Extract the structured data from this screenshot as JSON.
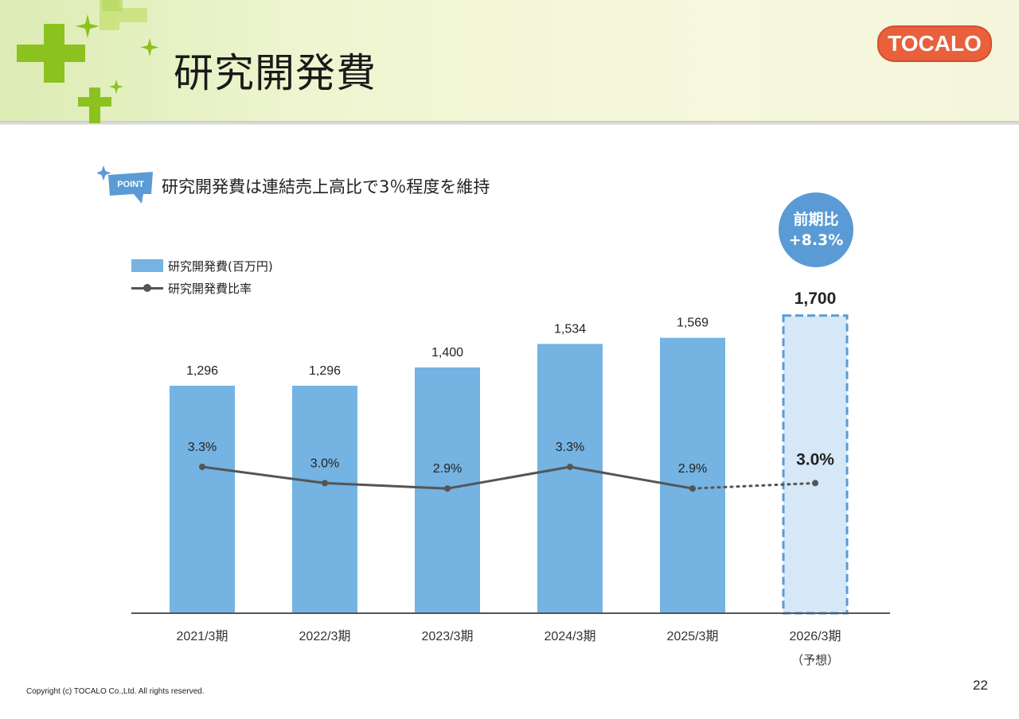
{
  "header": {
    "title": "研究開発費",
    "logo_text": "TOCALO"
  },
  "point": {
    "badge_label": "POINT",
    "text": "研究開発費は連結売上高比で3％程度を維持"
  },
  "legend": {
    "bar_label": "研究開発費(百万円)",
    "line_label": "研究開発費比率"
  },
  "yoy_badge": {
    "line1": "前期比",
    "line2": "+8.3%"
  },
  "chart_data": {
    "type": "bar",
    "categories": [
      "2021/3期",
      "2022/3期",
      "2023/3期",
      "2024/3期",
      "2025/3期",
      "2026/3期"
    ],
    "category_notes": [
      "",
      "",
      "",
      "",
      "",
      "（予想）"
    ],
    "series": [
      {
        "name": "研究開発費(百万円)",
        "type": "bar",
        "values": [
          1296,
          1296,
          1400,
          1534,
          1569,
          1700
        ],
        "labels": [
          "1,296",
          "1,296",
          "1,400",
          "1,534",
          "1,569",
          "1,700"
        ],
        "forecast": [
          false,
          false,
          false,
          false,
          false,
          true
        ]
      },
      {
        "name": "研究開発費比率",
        "type": "line",
        "values": [
          3.3,
          3.0,
          2.9,
          3.3,
          2.9,
          3.0
        ],
        "labels": [
          "3.3%",
          "3.0%",
          "2.9%",
          "3.3%",
          "2.9%",
          "3.0%"
        ],
        "forecast": [
          false,
          false,
          false,
          false,
          false,
          true
        ]
      }
    ],
    "colors": {
      "bar": "#74b3e2",
      "forecast_bar_fill": "#d6e8f7",
      "forecast_bar_border": "#5b9bd5",
      "line": "#555555",
      "axis": "#555555"
    }
  },
  "footer": {
    "copyright": "Copyright (c) TOCALO Co.,Ltd. All rights reserved.",
    "page_number": "22"
  }
}
